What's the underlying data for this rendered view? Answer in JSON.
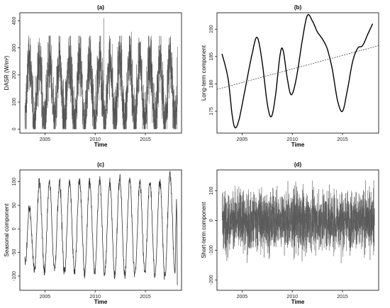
{
  "chart_data": [
    {
      "id": "a",
      "type": "line",
      "title": "(a)",
      "xlabel": "Time",
      "ylabel": "DASR (W/m²)",
      "xlim": [
        2002.5,
        2018.6
      ],
      "ylim": [
        -15,
        430
      ],
      "x_ticks": [
        2005,
        2010,
        2015
      ],
      "y_ticks": [
        0,
        100,
        200,
        300,
        400
      ],
      "series": [
        {
          "color": "#555555",
          "x_start": 2003.0,
          "x_end": 2018.2,
          "mean": 140,
          "seasonal_amplitude": 120,
          "seasonal_peak": 0.45,
          "noise": 70,
          "min": 0,
          "max": 345,
          "spikes": [
            [
              2010.85,
              410
            ],
            [
              2013.6,
              360
            ]
          ]
        }
      ]
    },
    {
      "id": "b",
      "type": "line",
      "title": "(b)",
      "xlabel": "Time",
      "ylabel": "Long-term component",
      "xlim": [
        2002.5,
        2018.6
      ],
      "ylim": [
        171,
        193
      ],
      "x_ticks": [
        2005,
        2010,
        2015
      ],
      "y_ticks": [
        175,
        180,
        185,
        190
      ],
      "series": [
        {
          "color": "#000000",
          "points": [
            [
              2003.0,
              185.5
            ],
            [
              2003.6,
              181
            ],
            [
              2004.0,
              174.5
            ],
            [
              2004.3,
              172
            ],
            [
              2004.7,
              173.5
            ],
            [
              2005.3,
              179
            ],
            [
              2006.0,
              185.5
            ],
            [
              2006.5,
              188.5
            ],
            [
              2007.0,
              184
            ],
            [
              2007.5,
              176.5
            ],
            [
              2007.9,
              174
            ],
            [
              2008.3,
              177.5
            ],
            [
              2008.8,
              185.5
            ],
            [
              2009.1,
              186
            ],
            [
              2009.5,
              181
            ],
            [
              2009.9,
              178
            ],
            [
              2010.4,
              181
            ],
            [
              2011.0,
              188
            ],
            [
              2011.5,
              192.5
            ],
            [
              2012.0,
              191.5
            ],
            [
              2012.5,
              189.5
            ],
            [
              2013.0,
              188.2
            ],
            [
              2013.5,
              186.3
            ],
            [
              2014.0,
              182.5
            ],
            [
              2014.5,
              177
            ],
            [
              2015.0,
              175
            ],
            [
              2015.5,
              179
            ],
            [
              2016.0,
              184
            ],
            [
              2016.5,
              186.5
            ],
            [
              2017.0,
              187
            ],
            [
              2017.5,
              189
            ],
            [
              2018.0,
              191
            ]
          ]
        },
        {
          "color": "#444444",
          "dashed": true,
          "points": [
            [
              2002.5,
              179
            ],
            [
              2018.6,
              187
            ]
          ]
        }
      ]
    },
    {
      "id": "c",
      "type": "line",
      "title": "(c)",
      "xlabel": "Time",
      "ylabel": "Seasonal component",
      "xlim": [
        2002.5,
        2018.6
      ],
      "ylim": [
        -130,
        125
      ],
      "x_ticks": [
        2005,
        2010,
        2015
      ],
      "y_ticks": [
        -100,
        -50,
        0,
        50,
        100
      ],
      "series": [
        {
          "color": "#333333",
          "x_start": 2003.0,
          "x_end": 2018.2,
          "seasonal_amplitude": 95,
          "seasonal_peak": 0.45,
          "noise": 6,
          "peaks": [
            [
              2003.45,
              45
            ],
            [
              2004.45,
              100
            ],
            [
              2005.45,
              100
            ],
            [
              2006.45,
              98
            ],
            [
              2007.45,
              100
            ],
            [
              2008.45,
              105
            ],
            [
              2009.45,
              103
            ],
            [
              2010.45,
              102
            ],
            [
              2011.45,
              100
            ],
            [
              2012.45,
              108
            ],
            [
              2013.45,
              103
            ],
            [
              2014.45,
              98
            ],
            [
              2015.45,
              100
            ],
            [
              2016.45,
              100
            ],
            [
              2017.45,
              118
            ],
            [
              2018.1,
              60
            ]
          ],
          "troughs": [
            [
              2003.05,
              -70
            ],
            [
              2003.95,
              -85
            ],
            [
              2004.95,
              -90
            ],
            [
              2005.95,
              -85
            ],
            [
              2006.95,
              -95
            ],
            [
              2007.95,
              -90
            ],
            [
              2008.95,
              -95
            ],
            [
              2009.95,
              -90
            ],
            [
              2010.95,
              -95
            ],
            [
              2011.95,
              -95
            ],
            [
              2012.95,
              -95
            ],
            [
              2013.95,
              -100
            ],
            [
              2014.95,
              -90
            ],
            [
              2015.95,
              -95
            ],
            [
              2016.95,
              -100
            ],
            [
              2017.95,
              -90
            ],
            [
              2018.2,
              -125
            ]
          ]
        }
      ]
    },
    {
      "id": "d",
      "type": "line",
      "title": "(d)",
      "xlabel": "Time",
      "ylabel": "Short-term component",
      "xlim": [
        2002.5,
        2018.6
      ],
      "ylim": [
        -235,
        170
      ],
      "x_ticks": [
        2005,
        2010,
        2015
      ],
      "y_ticks": [
        -200,
        -100,
        0,
        100
      ],
      "series": [
        {
          "color": "#5a5a5a",
          "x_start": 2003.0,
          "x_end": 2018.2,
          "mean": 0,
          "noise": 60,
          "min": -215,
          "max": 135
        }
      ]
    }
  ]
}
